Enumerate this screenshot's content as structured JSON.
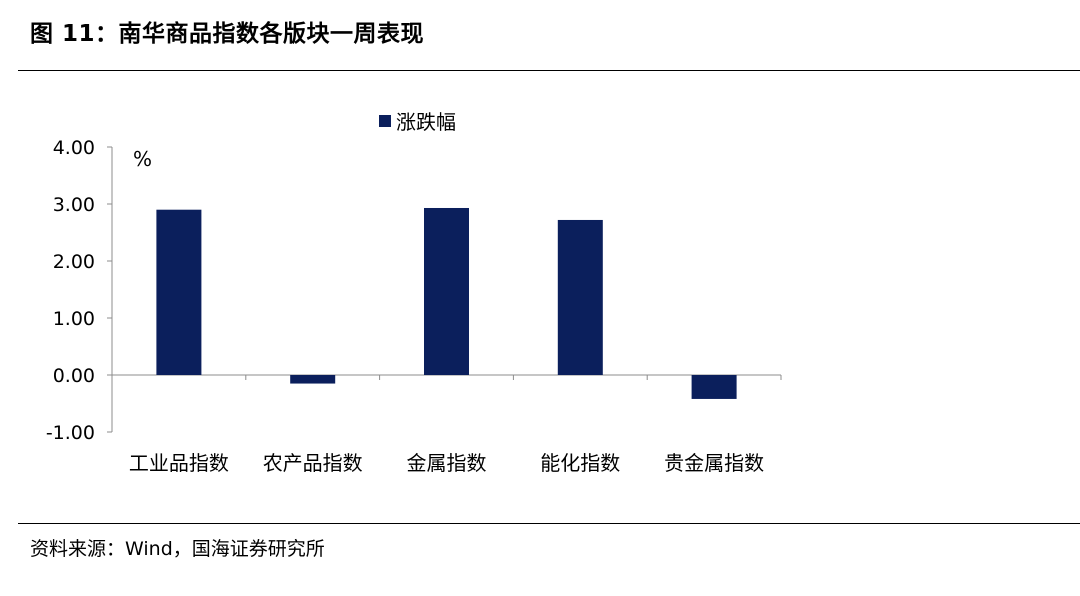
{
  "figure": {
    "title": "图 11：南华商品指数各版块一周表现",
    "source": "资料来源：Wind，国海证券研究所"
  },
  "colors": {
    "bar": "#0B1F5C",
    "axis": "#8C8C8C"
  },
  "chart_data": {
    "type": "bar",
    "categories": [
      "工业品指数",
      "农产品指数",
      "金属指数",
      "能化指数",
      "贵金属指数"
    ],
    "series": [
      {
        "name": "涨跌幅",
        "values": [
          2.9,
          -0.15,
          2.93,
          2.72,
          -0.42
        ]
      }
    ],
    "unit_label": "%",
    "ylim": [
      -1.0,
      4.0
    ],
    "yticks": [
      "4.00",
      "3.00",
      "2.00",
      "1.00",
      "0.00",
      "-1.00"
    ],
    "legend_position": "top",
    "grid": false
  }
}
